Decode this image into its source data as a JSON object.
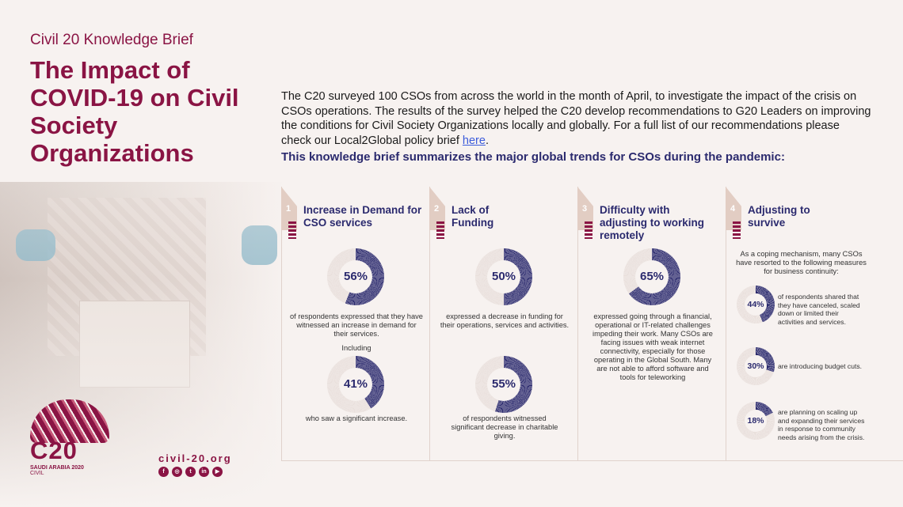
{
  "header": {
    "kicker": "Civil 20 Knowledge Brief",
    "title": "The Impact of COVID-19 on Civil Society Organizations"
  },
  "intro": {
    "text": "The C20 surveyed 100 CSOs from across the world in the month of April, to investigate the impact of the crisis on CSOs operations. The results of the survey helped the C20 develop recommendations to G20 Leaders on improving the conditions for Civil Society Organizations locally and globally. For a full list of our recommendations please check our Local2Global policy brief ",
    "link_label": "here",
    "after_link": "."
  },
  "lead": "This knowledge brief summarizes the major global trends for CSOs during the pandemic:",
  "colors": {
    "brand": "#8a1444",
    "navy": "#2b2a6e",
    "track": "#e9e0dc"
  },
  "columns": [
    {
      "num": "1",
      "heading": "Increase in Demand for CSO services",
      "stats": [
        {
          "value": 56,
          "label": "56%",
          "caption": "of respondents expressed that they have witnessed an increase in demand for their services."
        },
        {
          "value": 41,
          "label": "41%",
          "caption": "who saw a significant increase."
        }
      ],
      "between": "Including"
    },
    {
      "num": "2",
      "heading": "Lack of Funding",
      "stats": [
        {
          "value": 50,
          "label": "50%",
          "caption": "expressed a decrease in funding for their operations, services and activities."
        },
        {
          "value": 55,
          "label": "55%",
          "caption": "of respondents witnessed significant decrease in charitable giving."
        }
      ]
    },
    {
      "num": "3",
      "heading": "Difficulty with adjusting to working remotely",
      "stats": [
        {
          "value": 65,
          "label": "65%",
          "caption": "expressed going through a financial, operational or IT-related challenges impeding their work. Many CSOs are facing issues with weak internet connectivity, especially for those operating in the Global South. Many are not able to afford software and tools for teleworking"
        }
      ]
    },
    {
      "num": "4",
      "heading": "Adjusting to survive",
      "intro": "As a coping mechanism, many CSOs have resorted to the following measures for business continuity:",
      "stats": [
        {
          "value": 44,
          "label": "44%",
          "caption": "of respondents shared that they have canceled, scaled down or limited their activities and services."
        },
        {
          "value": 30,
          "label": "30%",
          "caption": "are introducing budget cuts."
        },
        {
          "value": 18,
          "label": "18%",
          "caption": "are planning on scaling up and expanding their services in response to community needs arising from the crisis."
        }
      ]
    }
  ],
  "footer": {
    "logo_text": "C20",
    "logo_sub": "SAUDI ARABIA 2020",
    "logo_sub2": "CIVIL",
    "site": "civil-20.org",
    "socials": [
      {
        "icon": "facebook-icon",
        "glyph": "f"
      },
      {
        "icon": "instagram-icon",
        "glyph": "◎"
      },
      {
        "icon": "twitter-icon",
        "glyph": "t"
      },
      {
        "icon": "linkedin-icon",
        "glyph": "in"
      },
      {
        "icon": "youtube-icon",
        "glyph": "▶"
      }
    ]
  }
}
